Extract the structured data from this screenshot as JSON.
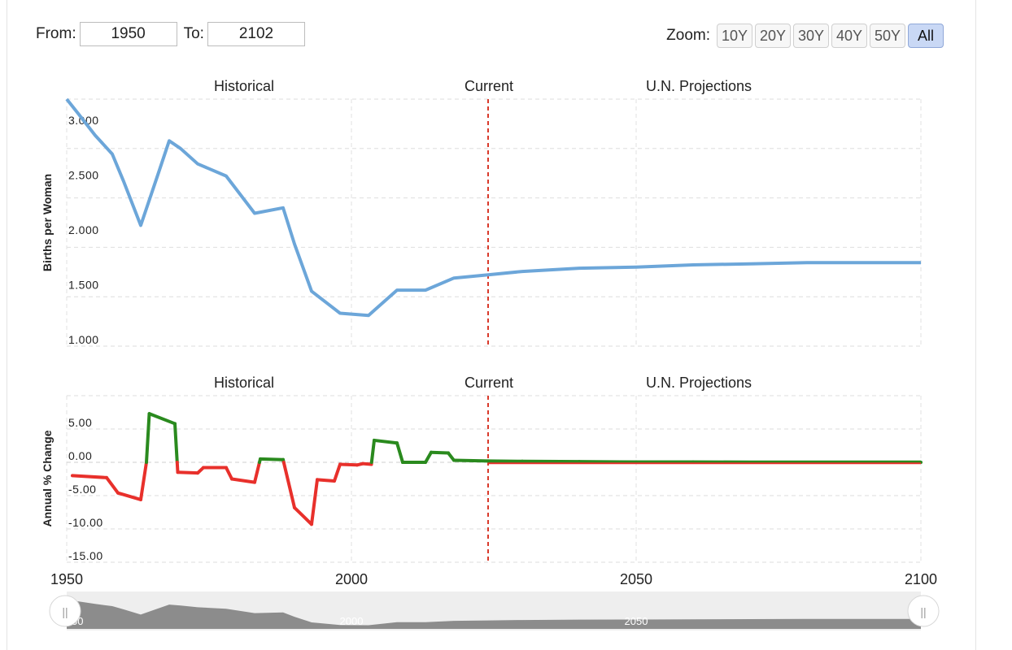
{
  "range": {
    "from_label": "From:",
    "from_value": "1950",
    "to_label": "To:",
    "to_value": "2102"
  },
  "zoom": {
    "label": "Zoom:",
    "buttons": [
      "10Y",
      "20Y",
      "30Y",
      "40Y",
      "50Y",
      "All"
    ],
    "active": "All"
  },
  "colors": {
    "line": "#6ca6d9",
    "positive": "#2a8a1e",
    "negative": "#e8302b",
    "current_marker": "#d93a2b",
    "navigator_fill": "#8c8c8c"
  },
  "chart_data": [
    {
      "type": "line",
      "ylabel": "Births per Woman",
      "ylim": [
        1.0,
        3.25
      ],
      "yticks": [
        "1.000",
        "1.500",
        "2.000",
        "2.500",
        "3.000"
      ],
      "xlim": [
        1950,
        2100
      ],
      "band_labels": [
        "Historical",
        "Current",
        "U.N. Projections"
      ],
      "current_year": 2024,
      "series": [
        {
          "x": [
            1950,
            1952,
            1955,
            1958,
            1960,
            1963,
            1966,
            1968,
            1970,
            1973,
            1978,
            1983,
            1988,
            1990,
            1993,
            1998,
            2003,
            2008,
            2013,
            2018,
            2024,
            2030,
            2040,
            2050,
            2060,
            2070,
            2080,
            2090,
            2100
          ],
          "y": [
            3.25,
            3.12,
            2.92,
            2.75,
            2.5,
            2.1,
            2.56,
            2.87,
            2.8,
            2.66,
            2.55,
            2.21,
            2.26,
            1.93,
            1.5,
            1.3,
            1.28,
            1.51,
            1.51,
            1.62,
            1.65,
            1.68,
            1.71,
            1.72,
            1.74,
            1.75,
            1.76,
            1.76,
            1.76
          ]
        }
      ]
    },
    {
      "type": "line",
      "ylabel": "Annual % Change",
      "ylim": [
        -15.0,
        10.0
      ],
      "yticks": [
        "-15.00",
        "-10.00",
        "-5.00",
        "0.00",
        "5.00"
      ],
      "xlim": [
        1950,
        2100
      ],
      "xticks": [
        "1950",
        "2000",
        "2050",
        "2100"
      ],
      "band_labels": [
        "Historical",
        "Current",
        "U.N. Projections"
      ],
      "current_year": 2024,
      "series": [
        {
          "x": [
            1951,
            1957,
            1959,
            1963,
            1964,
            1964.5,
            1969,
            1969.5,
            1973,
            1974,
            1978,
            1979,
            1983,
            1984,
            1988,
            1990,
            1993,
            1994,
            1997,
            1998,
            2001,
            2002,
            2003.5,
            2004,
            2008,
            2009,
            2013,
            2014,
            2017,
            2018,
            2024,
            2030,
            2040,
            2050,
            2060,
            2070,
            2080,
            2090,
            2100
          ],
          "y": [
            -2.0,
            -2.3,
            -4.6,
            -5.6,
            0.0,
            7.3,
            5.8,
            -1.5,
            -1.6,
            -0.8,
            -0.8,
            -2.5,
            -3.0,
            0.5,
            0.4,
            -6.8,
            -9.3,
            -2.6,
            -2.8,
            -0.3,
            -0.4,
            -0.2,
            -0.3,
            3.3,
            2.9,
            0.0,
            0.0,
            1.5,
            1.4,
            0.3,
            0.2,
            0.15,
            0.1,
            0.05,
            0.05,
            0.0,
            0.0,
            0.0,
            0.0
          ]
        }
      ]
    }
  ],
  "navigator": {
    "labels": [
      "50",
      "2000",
      "2050"
    ],
    "handle_left": "||",
    "handle_right": "||"
  }
}
